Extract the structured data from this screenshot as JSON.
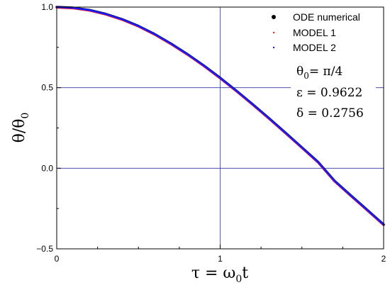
{
  "chart_data": {
    "type": "line",
    "xlabel": {
      "main": "τ = ω",
      "sub": "0",
      "tail": "t"
    },
    "ylabel": {
      "main": "θ/θ",
      "sub": "0"
    },
    "xlim": [
      0,
      2
    ],
    "ylim": [
      -0.5,
      1.0
    ],
    "x_ticks": [
      0,
      1,
      2
    ],
    "x_tick_labels": [
      "0",
      "1",
      "2"
    ],
    "y_ticks": [
      -0.5,
      0.0,
      0.5,
      1.0
    ],
    "y_tick_labels": [
      "−0.5",
      "0.0",
      "0.5",
      "1.0"
    ],
    "grid_lines": {
      "x": [
        1
      ],
      "y": [
        0.0,
        0.5
      ]
    },
    "legend": {
      "placement": "top-right",
      "entries": [
        {
          "label": "ODE numerical",
          "color": "#000000",
          "marker": "filled-circle"
        },
        {
          "label": "MODEL 1",
          "color": "#ff2020",
          "marker": "dot"
        },
        {
          "label": "MODEL 2",
          "color": "#1a1aff",
          "marker": "dot"
        }
      ]
    },
    "annotations": [
      {
        "main": "θ",
        "sub": "0",
        "tail": "= π/4"
      },
      {
        "main": "ε = 0.9622"
      },
      {
        "main": "δ = 0.2756"
      }
    ],
    "series": [
      {
        "name": "ODE numerical",
        "color": "#000000"
      },
      {
        "name": "MODEL 1",
        "color": "#ff2020"
      },
      {
        "name": "MODEL 2",
        "color": "#1a1aff"
      }
    ],
    "x": [
      0,
      0.1,
      0.2,
      0.3,
      0.4,
      0.5,
      0.6,
      0.7,
      0.8,
      0.9,
      1.0,
      1.1,
      1.2,
      1.3,
      1.4,
      1.5,
      1.6,
      1.7,
      1.8,
      1.9,
      2.0
    ],
    "y": [
      1.0,
      0.995,
      0.981,
      0.957,
      0.924,
      0.882,
      0.831,
      0.772,
      0.707,
      0.636,
      0.56,
      0.479,
      0.395,
      0.308,
      0.219,
      0.128,
      0.037,
      -0.079,
      -0.17,
      -0.26,
      -0.35
    ],
    "colors": {
      "grid": "#3333aa",
      "axis": "#000000"
    }
  }
}
